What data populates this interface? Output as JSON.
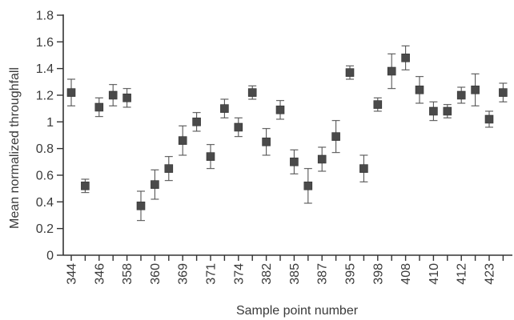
{
  "chart_data": {
    "type": "scatter",
    "title": "",
    "xlabel": "Sample point number",
    "ylabel": "Mean normalized throughfall",
    "ylim": [
      0,
      1.8
    ],
    "yticks": [
      "0",
      "0.2",
      "0.4",
      "0.6",
      "0.8",
      "1",
      "1.2",
      "1.4",
      "1.6",
      "1.8"
    ],
    "yticks_values": [
      0,
      0.2,
      0.4,
      0.6,
      0.8,
      1.0,
      1.2,
      1.4,
      1.6,
      1.8
    ],
    "xtick_labels": [
      "344",
      "346",
      "358",
      "360",
      "369",
      "371",
      "374",
      "382",
      "385",
      "387",
      "395",
      "398",
      "408",
      "410",
      "412",
      "423"
    ],
    "grid": false,
    "legend": "none",
    "marker_color": "#4a4a4a",
    "points": [
      {
        "y": 1.22,
        "err": 0.1
      },
      {
        "y": 0.52,
        "err": 0.05
      },
      {
        "y": 1.11,
        "err": 0.07
      },
      {
        "y": 1.2,
        "err": 0.08
      },
      {
        "y": 1.18,
        "err": 0.07
      },
      {
        "y": 0.37,
        "err": 0.11
      },
      {
        "y": 0.53,
        "err": 0.11
      },
      {
        "y": 0.65,
        "err": 0.09
      },
      {
        "y": 0.86,
        "err": 0.11
      },
      {
        "y": 1.0,
        "err": 0.07
      },
      {
        "y": 0.74,
        "err": 0.09
      },
      {
        "y": 1.1,
        "err": 0.07
      },
      {
        "y": 0.96,
        "err": 0.07
      },
      {
        "y": 1.22,
        "err": 0.05
      },
      {
        "y": 0.85,
        "err": 0.1
      },
      {
        "y": 1.09,
        "err": 0.07
      },
      {
        "y": 0.7,
        "err": 0.09
      },
      {
        "y": 0.52,
        "err": 0.13
      },
      {
        "y": 0.72,
        "err": 0.09
      },
      {
        "y": 0.89,
        "err": 0.12
      },
      {
        "y": 1.37,
        "err": 0.05
      },
      {
        "y": 0.65,
        "err": 0.1
      },
      {
        "y": 1.13,
        "err": 0.05
      },
      {
        "y": 1.38,
        "err": 0.13
      },
      {
        "y": 1.48,
        "err": 0.09
      },
      {
        "y": 1.24,
        "err": 0.1
      },
      {
        "y": 1.08,
        "err": 0.07
      },
      {
        "y": 1.08,
        "err": 0.05
      },
      {
        "y": 1.2,
        "err": 0.06
      },
      {
        "y": 1.24,
        "err": 0.12
      },
      {
        "y": 1.02,
        "err": 0.06
      },
      {
        "y": 1.22,
        "err": 0.07
      }
    ]
  }
}
